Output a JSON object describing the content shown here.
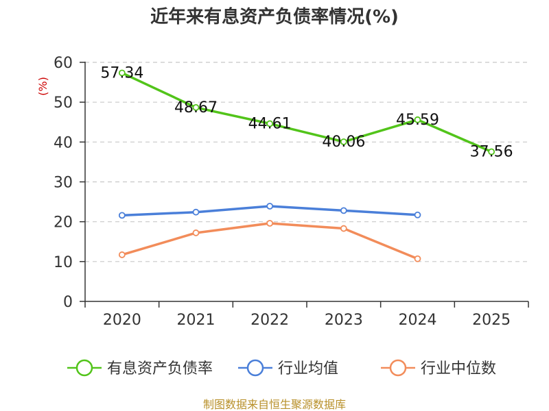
{
  "chart_data": {
    "type": "line",
    "title": "近年来有息资产负债率情况(%)",
    "ylabel": "(%)",
    "categories": [
      "2020",
      "2021",
      "2022",
      "2023",
      "2024",
      "2025"
    ],
    "ylim": [
      0,
      60
    ],
    "yticks": [
      0,
      10,
      20,
      30,
      40,
      50,
      60
    ],
    "grid": true,
    "legend_position": "bottom",
    "series": [
      {
        "name": "有息资产负债率",
        "color": "#52c41a",
        "values": [
          57.34,
          48.67,
          44.61,
          40.06,
          45.59,
          37.56
        ],
        "labels": [
          "57.34",
          "48.67",
          "44.61",
          "40.06",
          "45.59",
          "37.56"
        ]
      },
      {
        "name": "行业均值",
        "color": "#4a7fd9",
        "values": [
          21.6,
          22.4,
          23.9,
          22.8,
          21.7,
          null
        ]
      },
      {
        "name": "行业中位数",
        "color": "#f28c5a",
        "values": [
          11.7,
          17.2,
          19.6,
          18.3,
          10.7,
          null
        ]
      }
    ]
  },
  "source": "制图数据来自恒生聚源数据库"
}
